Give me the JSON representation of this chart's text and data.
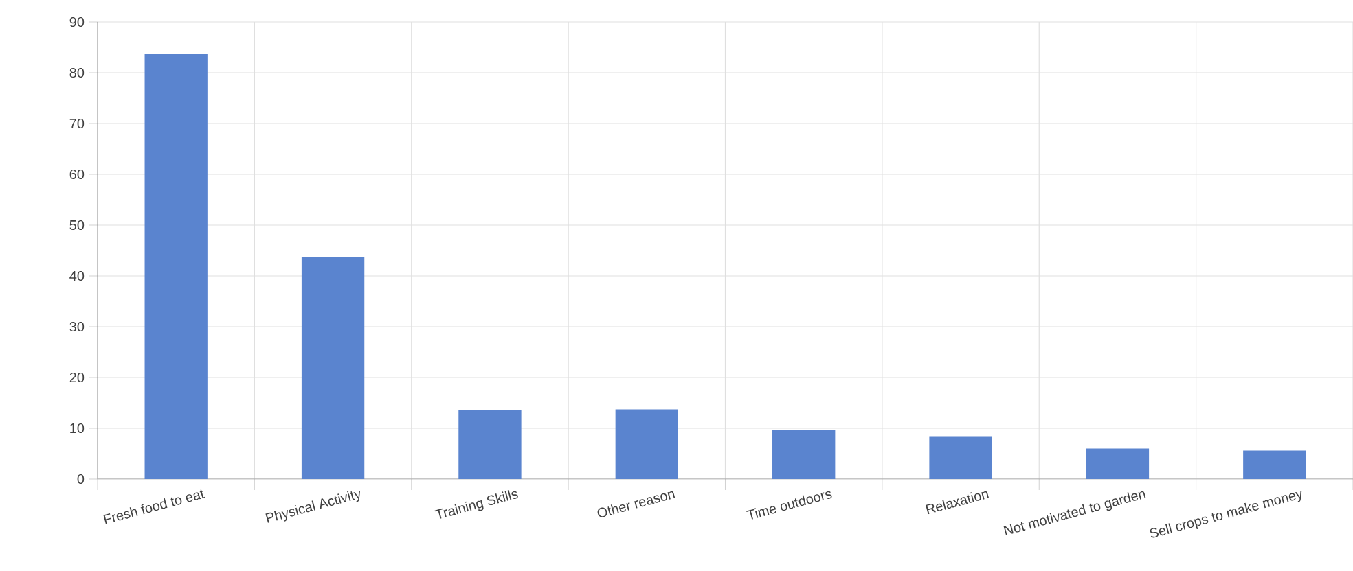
{
  "chart_data": {
    "type": "bar",
    "categories": [
      "Fresh food to eat",
      "Physical Activity",
      "Training Skills",
      "Other reason",
      "Time outdoors",
      "Relaxation",
      "Not motivated to garden",
      "Sell crops to make money"
    ],
    "values": [
      83.7,
      43.8,
      13.5,
      13.7,
      9.7,
      8.3,
      6.0,
      5.6
    ],
    "color": "#5a84cf",
    "ylim": [
      0,
      90
    ],
    "yticks": [
      0,
      10,
      20,
      30,
      40,
      50,
      60,
      70,
      80,
      90
    ],
    "grid": true
  }
}
